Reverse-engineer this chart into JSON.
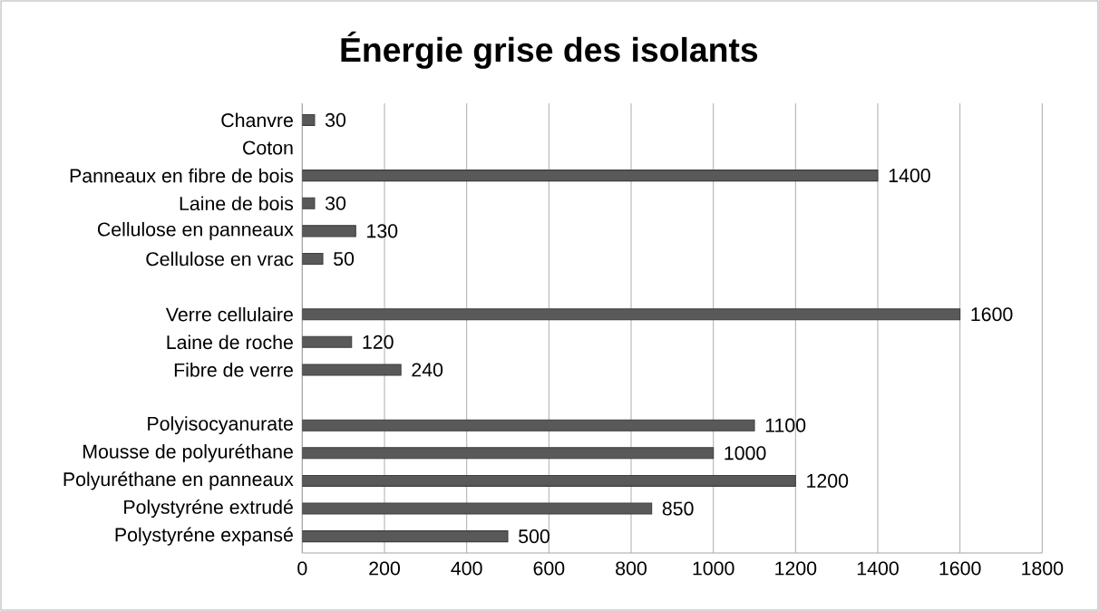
{
  "chart_data": {
    "type": "bar",
    "orientation": "horizontal",
    "title": "Énergie grise des isolants",
    "categories": [
      "Chanvre",
      "Coton",
      "Panneaux en fibre de bois",
      "Laine de bois",
      "Cellulose en panneaux",
      "Cellulose en vrac",
      null,
      "Verre cellulaire",
      "Laine de roche",
      "Fibre de verre",
      null,
      "Polyisocyanurate",
      "Mousse de polyuréthane",
      "Polyuréthane en panneaux",
      "Polystyréne extrudé",
      "Polystyréne expansé"
    ],
    "values": [
      30,
      null,
      1400,
      30,
      130,
      50,
      null,
      1600,
      120,
      240,
      null,
      1100,
      1000,
      1200,
      850,
      500
    ],
    "color": "#595959",
    "xlim": [
      0,
      1800
    ],
    "xticks": [
      0,
      200,
      400,
      600,
      800,
      1000,
      1200,
      1400,
      1600,
      1800
    ],
    "grid": "x",
    "data_labels": true
  }
}
